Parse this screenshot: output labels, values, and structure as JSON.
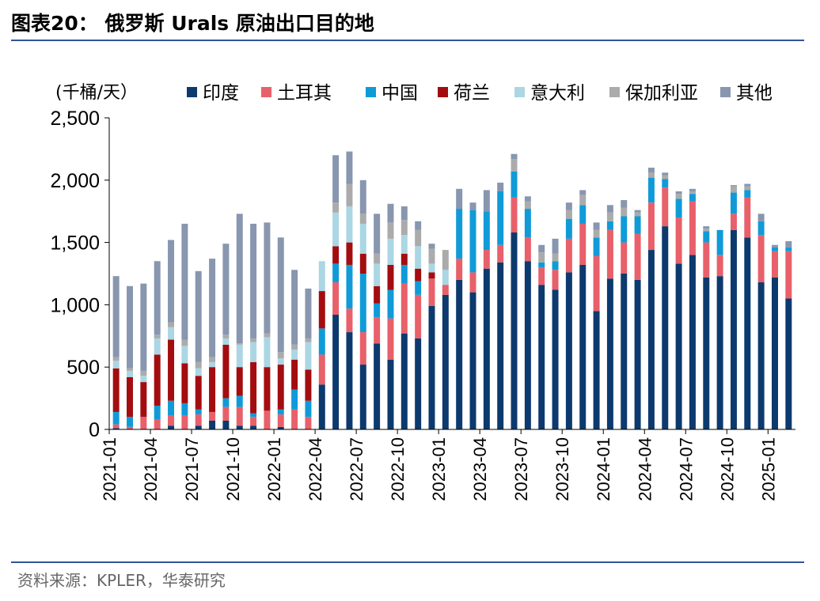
{
  "header": {
    "title": "图表20： 俄罗斯 Urals 原油出口目的地"
  },
  "footer": {
    "source": "资料来源：KPLER，华泰研究"
  },
  "chart_data": {
    "type": "bar",
    "stacked": true,
    "unit_label": "(千桶/天）",
    "ylim": [
      0,
      2500
    ],
    "yticks": [
      0,
      500,
      1000,
      1500,
      2000,
      2500
    ],
    "ytick_labels": [
      "0",
      "500",
      "1,000",
      "1,500",
      "2,000",
      "2,500"
    ],
    "legend_position": "top",
    "categories": [
      "2021-01",
      "2021-02",
      "2021-03",
      "2021-04",
      "2021-05",
      "2021-06",
      "2021-07",
      "2021-08",
      "2021-09",
      "2021-10",
      "2021-11",
      "2021-12",
      "2022-01",
      "2022-02",
      "2022-03",
      "2022-04",
      "2022-05",
      "2022-06",
      "2022-07",
      "2022-08",
      "2022-09",
      "2022-10",
      "2022-11",
      "2022-12",
      "2023-01",
      "2023-02",
      "2023-03",
      "2023-04",
      "2023-05",
      "2023-06",
      "2023-07",
      "2023-08",
      "2023-09",
      "2023-10",
      "2023-11",
      "2023-12",
      "2024-01",
      "2024-02",
      "2024-03",
      "2024-04",
      "2024-05",
      "2024-06",
      "2024-07",
      "2024-08",
      "2024-09",
      "2024-10",
      "2024-11",
      "2024-12",
      "2025-01",
      "2025-02"
    ],
    "xtick_labels": [
      "2021-01",
      "2021-04",
      "2021-07",
      "2021-10",
      "2022-01",
      "2022-04",
      "2022-07",
      "2022-10",
      "2023-01",
      "2023-04",
      "2023-07",
      "2023-10",
      "2024-01",
      "2024-04",
      "2024-07",
      "2024-10",
      "2025-01"
    ],
    "series": [
      {
        "name": "印度",
        "color": "#0c3a6e",
        "values": [
          10,
          0,
          0,
          0,
          30,
          0,
          30,
          70,
          70,
          30,
          30,
          0,
          20,
          0,
          0,
          360,
          920,
          780,
          520,
          690,
          560,
          770,
          730,
          990,
          1080,
          1200,
          1100,
          1290,
          1340,
          1580,
          1350,
          1160,
          1120,
          1260,
          1320,
          950,
          1210,
          1250,
          1200,
          1440,
          1630,
          1330,
          1400,
          1220,
          1230,
          1600,
          1540,
          1180,
          1220,
          1050
        ]
      },
      {
        "name": "土耳其",
        "color": "#e8606a",
        "values": [
          30,
          20,
          100,
          80,
          80,
          110,
          90,
          70,
          110,
          150,
          70,
          150,
          100,
          160,
          100,
          240,
          260,
          190,
          260,
          210,
          330,
          400,
          350,
          220,
          80,
          170,
          160,
          150,
          140,
          280,
          190,
          140,
          160,
          270,
          330,
          440,
          390,
          250,
          370,
          380,
          310,
          370,
          430,
          280,
          170,
          130,
          320,
          380,
          210,
          380
        ]
      },
      {
        "name": "中国",
        "color": "#109bd8",
        "values": [
          100,
          80,
          0,
          110,
          120,
          100,
          40,
          0,
          70,
          90,
          30,
          0,
          40,
          160,
          130,
          210,
          150,
          350,
          470,
          110,
          230,
          150,
          110,
          0,
          0,
          400,
          500,
          310,
          430,
          210,
          230,
          40,
          70,
          160,
          150,
          150,
          70,
          210,
          140,
          200,
          70,
          150,
          60,
          90,
          200,
          170,
          60,
          110,
          30,
          30
        ]
      },
      {
        "name": "荷兰",
        "color": "#a30d10",
        "values": [
          350,
          320,
          280,
          410,
          490,
          320,
          270,
          360,
          430,
          230,
          410,
          350,
          360,
          240,
          250,
          300,
          140,
          180,
          160,
          140,
          200,
          90,
          100,
          50,
          0,
          0,
          0,
          0,
          0,
          0,
          0,
          0,
          0,
          0,
          0,
          0,
          0,
          0,
          0,
          0,
          0,
          0,
          0,
          0,
          0,
          0,
          0,
          0,
          0,
          0
        ]
      },
      {
        "name": "意大利",
        "color": "#abd6e4",
        "values": [
          60,
          50,
          50,
          130,
          100,
          140,
          60,
          40,
          50,
          180,
          160,
          240,
          50,
          80,
          220,
          240,
          270,
          290,
          240,
          180,
          210,
          150,
          180,
          70,
          120,
          0,
          0,
          0,
          0,
          0,
          0,
          0,
          0,
          0,
          0,
          0,
          0,
          0,
          0,
          0,
          0,
          0,
          0,
          0,
          0,
          0,
          0,
          0,
          0,
          0
        ]
      },
      {
        "name": "保加利亚",
        "color": "#ababab",
        "values": [
          30,
          20,
          40,
          30,
          40,
          50,
          50,
          40,
          30,
          10,
          30,
          30,
          50,
          40,
          30,
          0,
          80,
          180,
          80,
          80,
          130,
          120,
          130,
          120,
          160,
          0,
          0,
          0,
          0,
          100,
          60,
          80,
          60,
          70,
          80,
          60,
          70,
          70,
          30,
          40,
          30,
          40,
          20,
          20,
          0,
          50,
          30,
          0,
          0,
          0
        ]
      },
      {
        "name": "其他",
        "color": "#8896af",
        "values": [
          650,
          660,
          700,
          590,
          660,
          930,
          730,
          790,
          730,
          1040,
          920,
          890,
          920,
          600,
          400,
          0,
          380,
          260,
          270,
          320,
          150,
          110,
          70,
          40,
          0,
          160,
          60,
          170,
          70,
          40,
          40,
          60,
          120,
          60,
          40,
          60,
          60,
          60,
          20,
          40,
          20,
          20,
          20,
          20,
          0,
          10,
          20,
          60,
          20,
          50
        ]
      }
    ]
  }
}
